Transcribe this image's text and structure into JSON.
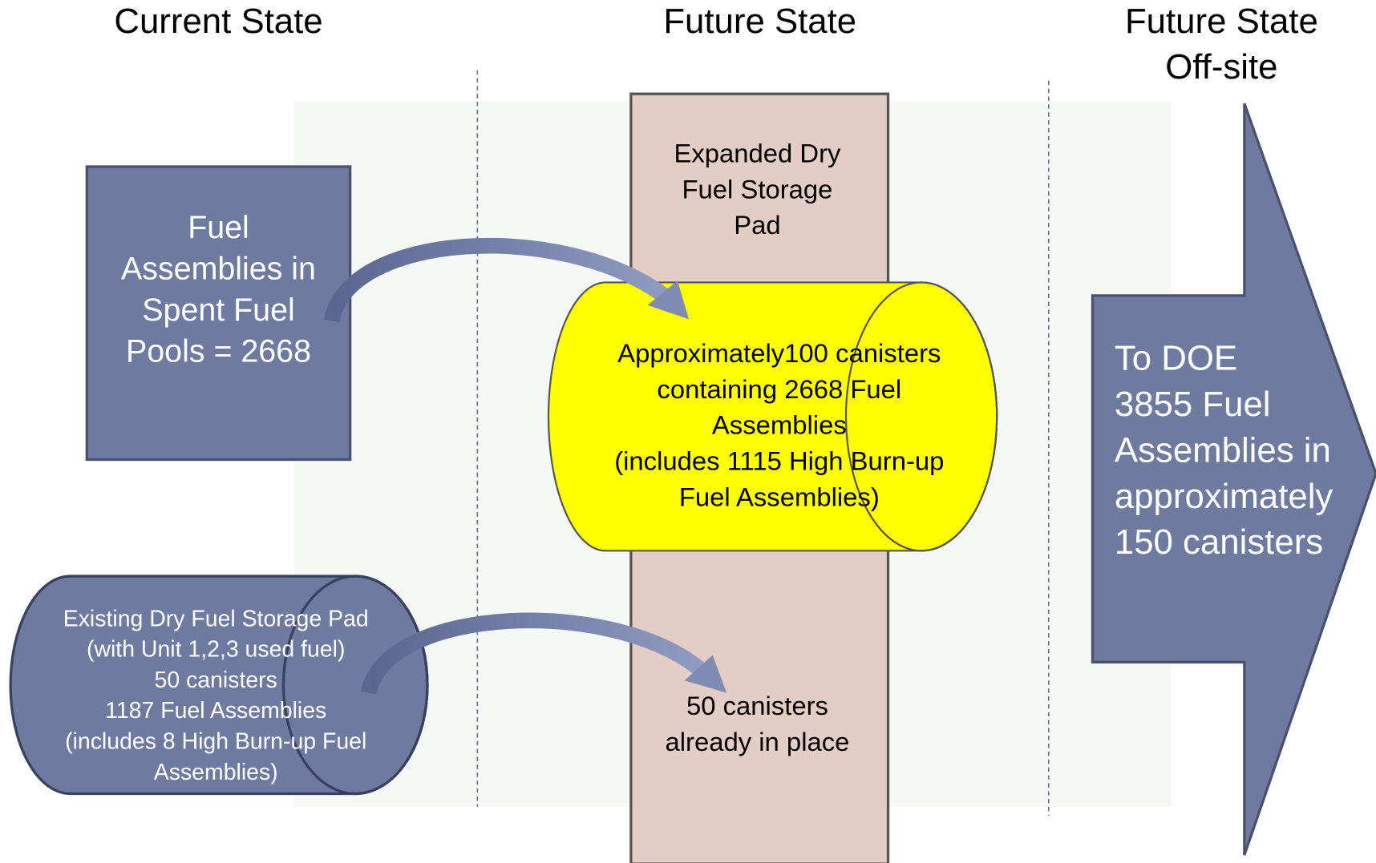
{
  "columns": [
    {
      "title_lines": [
        "Current State"
      ]
    },
    {
      "title_lines": [
        "Future State"
      ]
    },
    {
      "title_lines": [
        "Future State",
        "Off-site"
      ]
    }
  ],
  "spent_fuel_pools": {
    "lines": [
      "Fuel",
      "Assemblies  in",
      "Spent Fuel",
      "Pools = 2668"
    ]
  },
  "existing_pad": {
    "lines": [
      "Existing Dry Fuel Storage Pad",
      "(with Unit 1,2,3 used fuel)",
      "50 canisters",
      "1187 Fuel Assemblies",
      "(includes 8 High Burn-up Fuel",
      "Assemblies)"
    ]
  },
  "expanded_pad": {
    "lines": [
      "Expanded Dry",
      "Fuel Storage",
      "Pad"
    ],
    "new_canisters": {
      "lines": [
        "Approximately100 canisters",
        "containing 2668 Fuel",
        "Assemblies",
        "(includes 1115 High Burn-up",
        "Fuel Assemblies)"
      ]
    },
    "existing_canisters": {
      "lines": [
        "50 canisters",
        "already in place"
      ]
    }
  },
  "off_site": {
    "lines": [
      "To DOE",
      "3855 Fuel",
      "Assemblies in",
      "approximately",
      "150 canisters"
    ]
  }
}
